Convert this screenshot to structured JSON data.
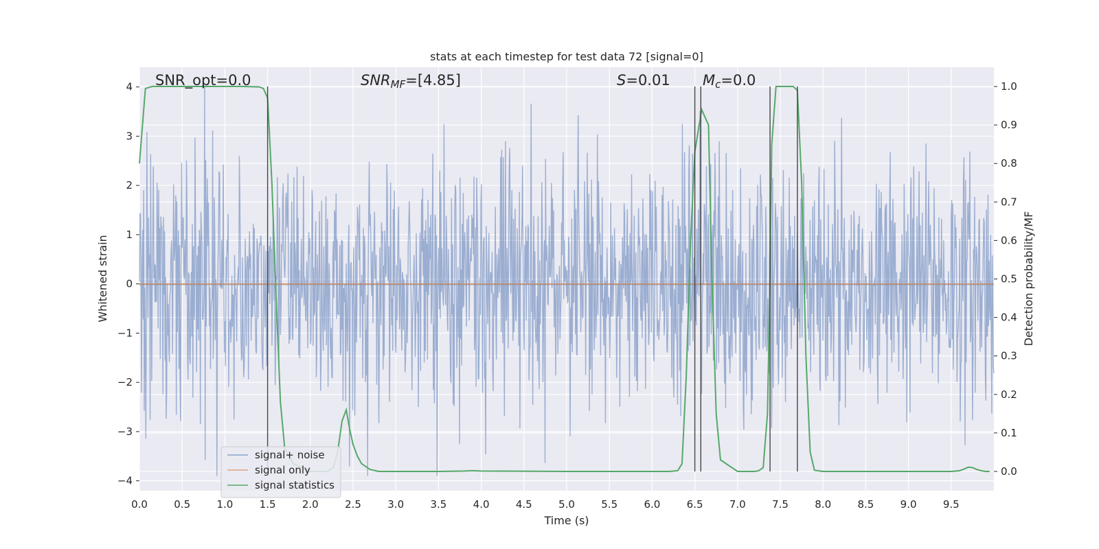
{
  "chart_data": {
    "type": "line",
    "title": "stats at each timestep for test data 72 [signal=0]",
    "xlabel": "Time (s)",
    "ylabel_left": "Whitened strain",
    "ylabel_right": "Detection probability/MF",
    "xlim": [
      0,
      10
    ],
    "ylim_left": [
      -4.2,
      4.4
    ],
    "ylim_right": [
      -0.05,
      1.05
    ],
    "x_ticks": [
      "0.0",
      "0.5",
      "1.0",
      "1.5",
      "2.0",
      "2.5",
      "3.0",
      "3.5",
      "4.0",
      "4.5",
      "5.0",
      "5.5",
      "6.0",
      "6.5",
      "7.0",
      "7.5",
      "8.0",
      "8.5",
      "9.0",
      "9.5"
    ],
    "y_ticks_left": [
      "4",
      "3",
      "2",
      "1",
      "0",
      "−1",
      "−2",
      "−3",
      "−4"
    ],
    "y_ticks_right": [
      "1.0",
      "0.9",
      "0.8",
      "0.7",
      "0.6",
      "0.5",
      "0.4",
      "0.3",
      "0.2",
      "0.1",
      "0.0"
    ],
    "annotations": {
      "snr_opt": "SNR_opt=0.0",
      "snr_mf_math": "SNR",
      "snr_mf_sub": "MF",
      "snr_mf_value": "=[4.85]",
      "s_math": "S",
      "s_value": "=0.01",
      "mc_math": "M",
      "mc_sub": "c",
      "mc_value": "=0.0"
    },
    "grid": true,
    "legend_placement": "lower-left",
    "series": [
      {
        "name": "signal+ noise",
        "color": "#4c72b0",
        "note_values": "whitened noise, approx. 1600 samples, range -3.9 to 4.0"
      },
      {
        "name": "signal only",
        "color": "#dd8452",
        "values_constant": 0.0
      },
      {
        "name": "signal statistics",
        "color": "#55a868",
        "x": [
          0.0,
          0.07,
          0.15,
          0.3,
          0.5,
          0.8,
          1.0,
          1.2,
          1.4,
          1.45,
          1.5,
          1.55,
          1.6,
          1.65,
          1.7,
          1.8,
          2.0,
          2.2,
          2.27,
          2.32,
          2.37,
          2.42,
          2.46,
          2.5,
          2.55,
          2.6,
          2.7,
          2.8,
          3.0,
          3.5,
          3.8,
          3.9,
          4.0,
          5.0,
          6.0,
          6.2,
          6.3,
          6.35,
          6.4,
          6.45,
          6.5,
          6.55,
          6.58,
          6.62,
          6.66,
          6.7,
          6.75,
          6.8,
          7.0,
          7.2,
          7.25,
          7.3,
          7.35,
          7.38,
          7.4,
          7.45,
          7.5,
          7.6,
          7.65,
          7.7,
          7.75,
          7.8,
          7.85,
          7.9,
          8.0,
          9.0,
          9.5,
          9.6,
          9.65,
          9.7,
          9.75,
          9.8,
          9.85,
          9.9,
          9.95
        ],
        "y": [
          0.8,
          0.995,
          1.0,
          1.0,
          1.0,
          1.0,
          1.0,
          1.0,
          0.999,
          0.995,
          0.97,
          0.75,
          0.45,
          0.18,
          0.06,
          0.02,
          0.0,
          0.0,
          0.01,
          0.05,
          0.13,
          0.16,
          0.11,
          0.07,
          0.04,
          0.02,
          0.005,
          0.0,
          0.0,
          0.0,
          0.001,
          0.002,
          0.001,
          0.0,
          0.0,
          0.0,
          0.002,
          0.02,
          0.25,
          0.6,
          0.83,
          0.9,
          0.94,
          0.92,
          0.9,
          0.5,
          0.15,
          0.03,
          0.0,
          0.0,
          0.002,
          0.01,
          0.15,
          0.5,
          0.85,
          1.0,
          1.0,
          1.0,
          1.0,
          0.99,
          0.75,
          0.3,
          0.05,
          0.003,
          0.0,
          0.0,
          0.0,
          0.002,
          0.006,
          0.011,
          0.01,
          0.005,
          0.002,
          0.0,
          0.0
        ]
      }
    ],
    "vertical_markers_x": [
      1.5,
      6.5,
      6.57,
      7.38,
      7.7
    ]
  }
}
